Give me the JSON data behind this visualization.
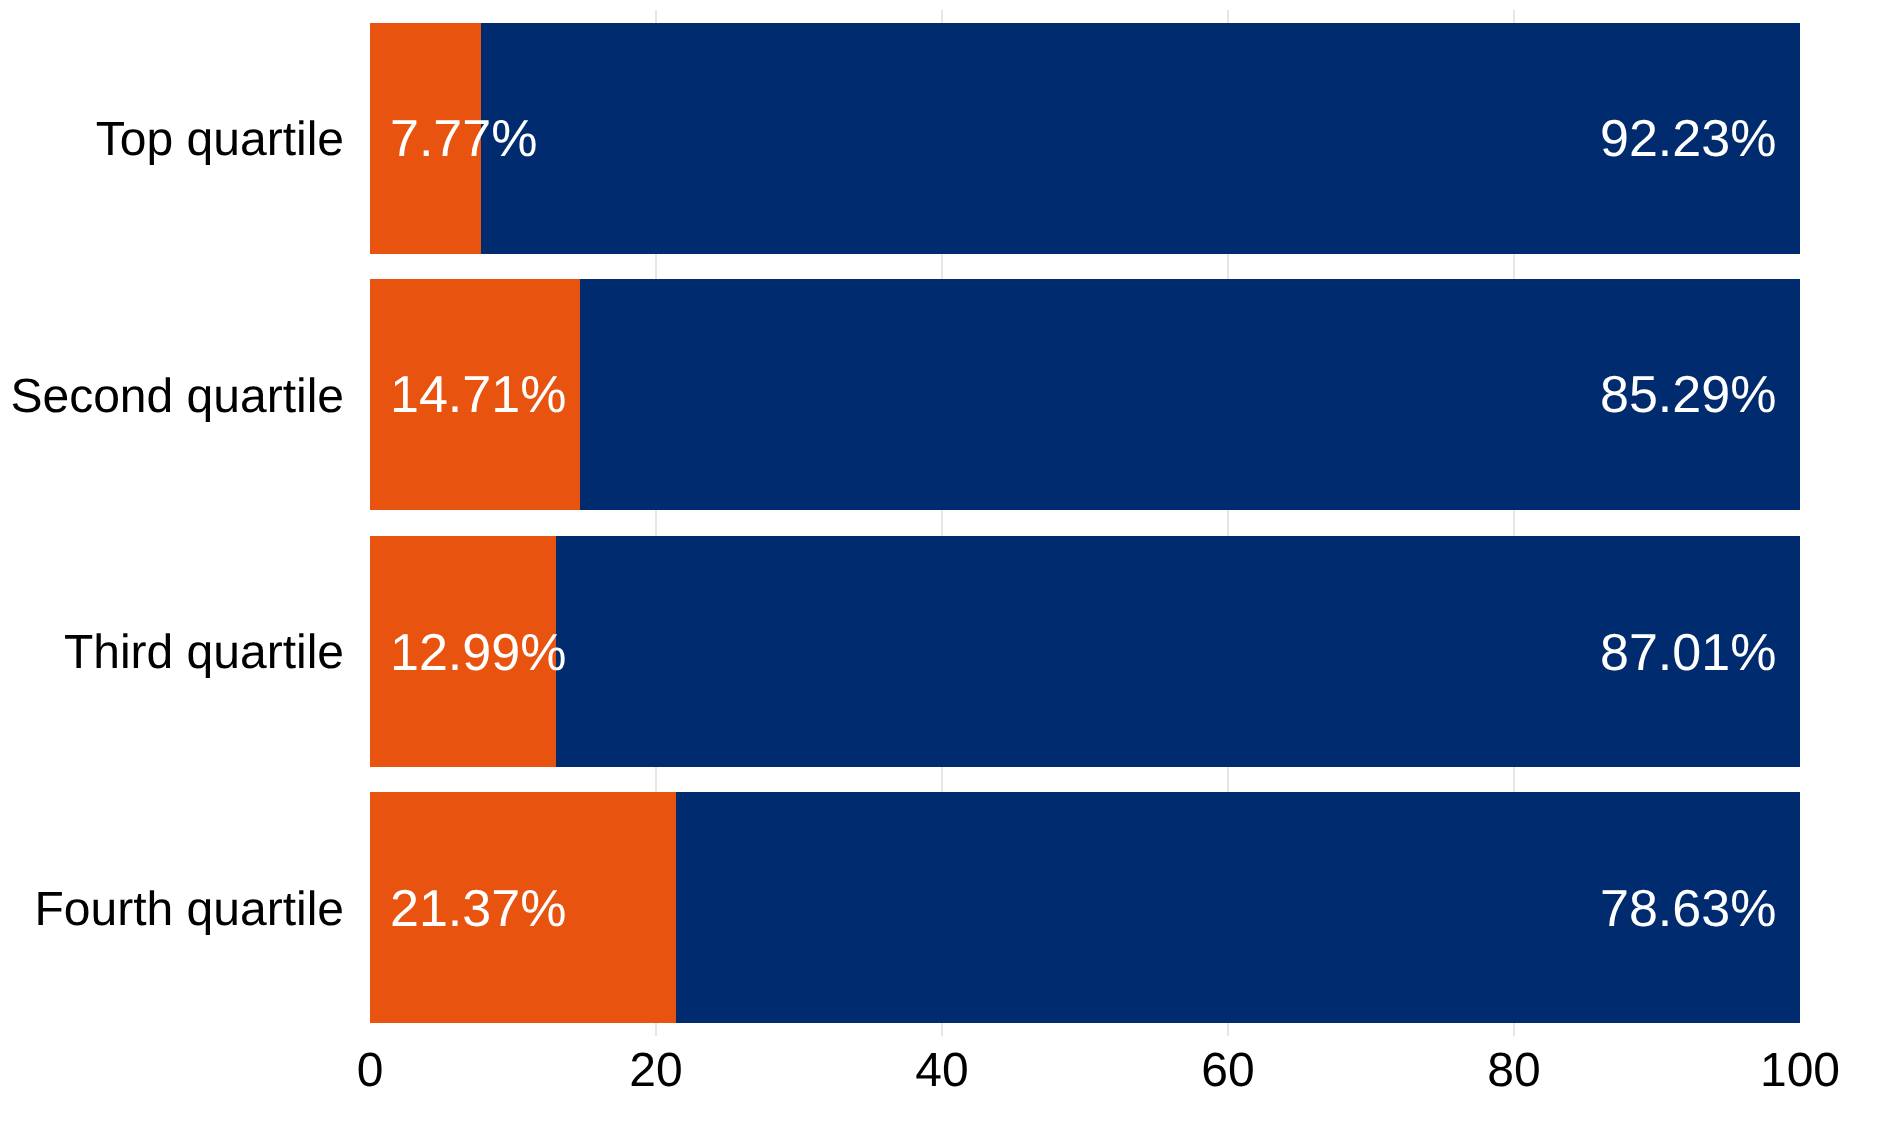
{
  "chart_data": {
    "type": "bar",
    "orientation": "horizontal",
    "stacked": true,
    "categories": [
      "Top quartile",
      "Second quartile",
      "Third quartile",
      "Fourth quartile"
    ],
    "series": [
      {
        "color": "#e8540f",
        "values": [
          7.77,
          14.71,
          12.99,
          21.37
        ],
        "value_labels": [
          "7.77%",
          "14.71%",
          "12.99%",
          "21.37%"
        ]
      },
      {
        "color": "#002b6e",
        "values": [
          92.23,
          85.29,
          87.01,
          78.63
        ],
        "value_labels": [
          "92.23%",
          "85.29%",
          "87.01%",
          "78.63%"
        ]
      }
    ],
    "xlim": [
      0,
      100
    ],
    "xticks": [
      0,
      20,
      40,
      60,
      80,
      100
    ],
    "grid": "x"
  }
}
